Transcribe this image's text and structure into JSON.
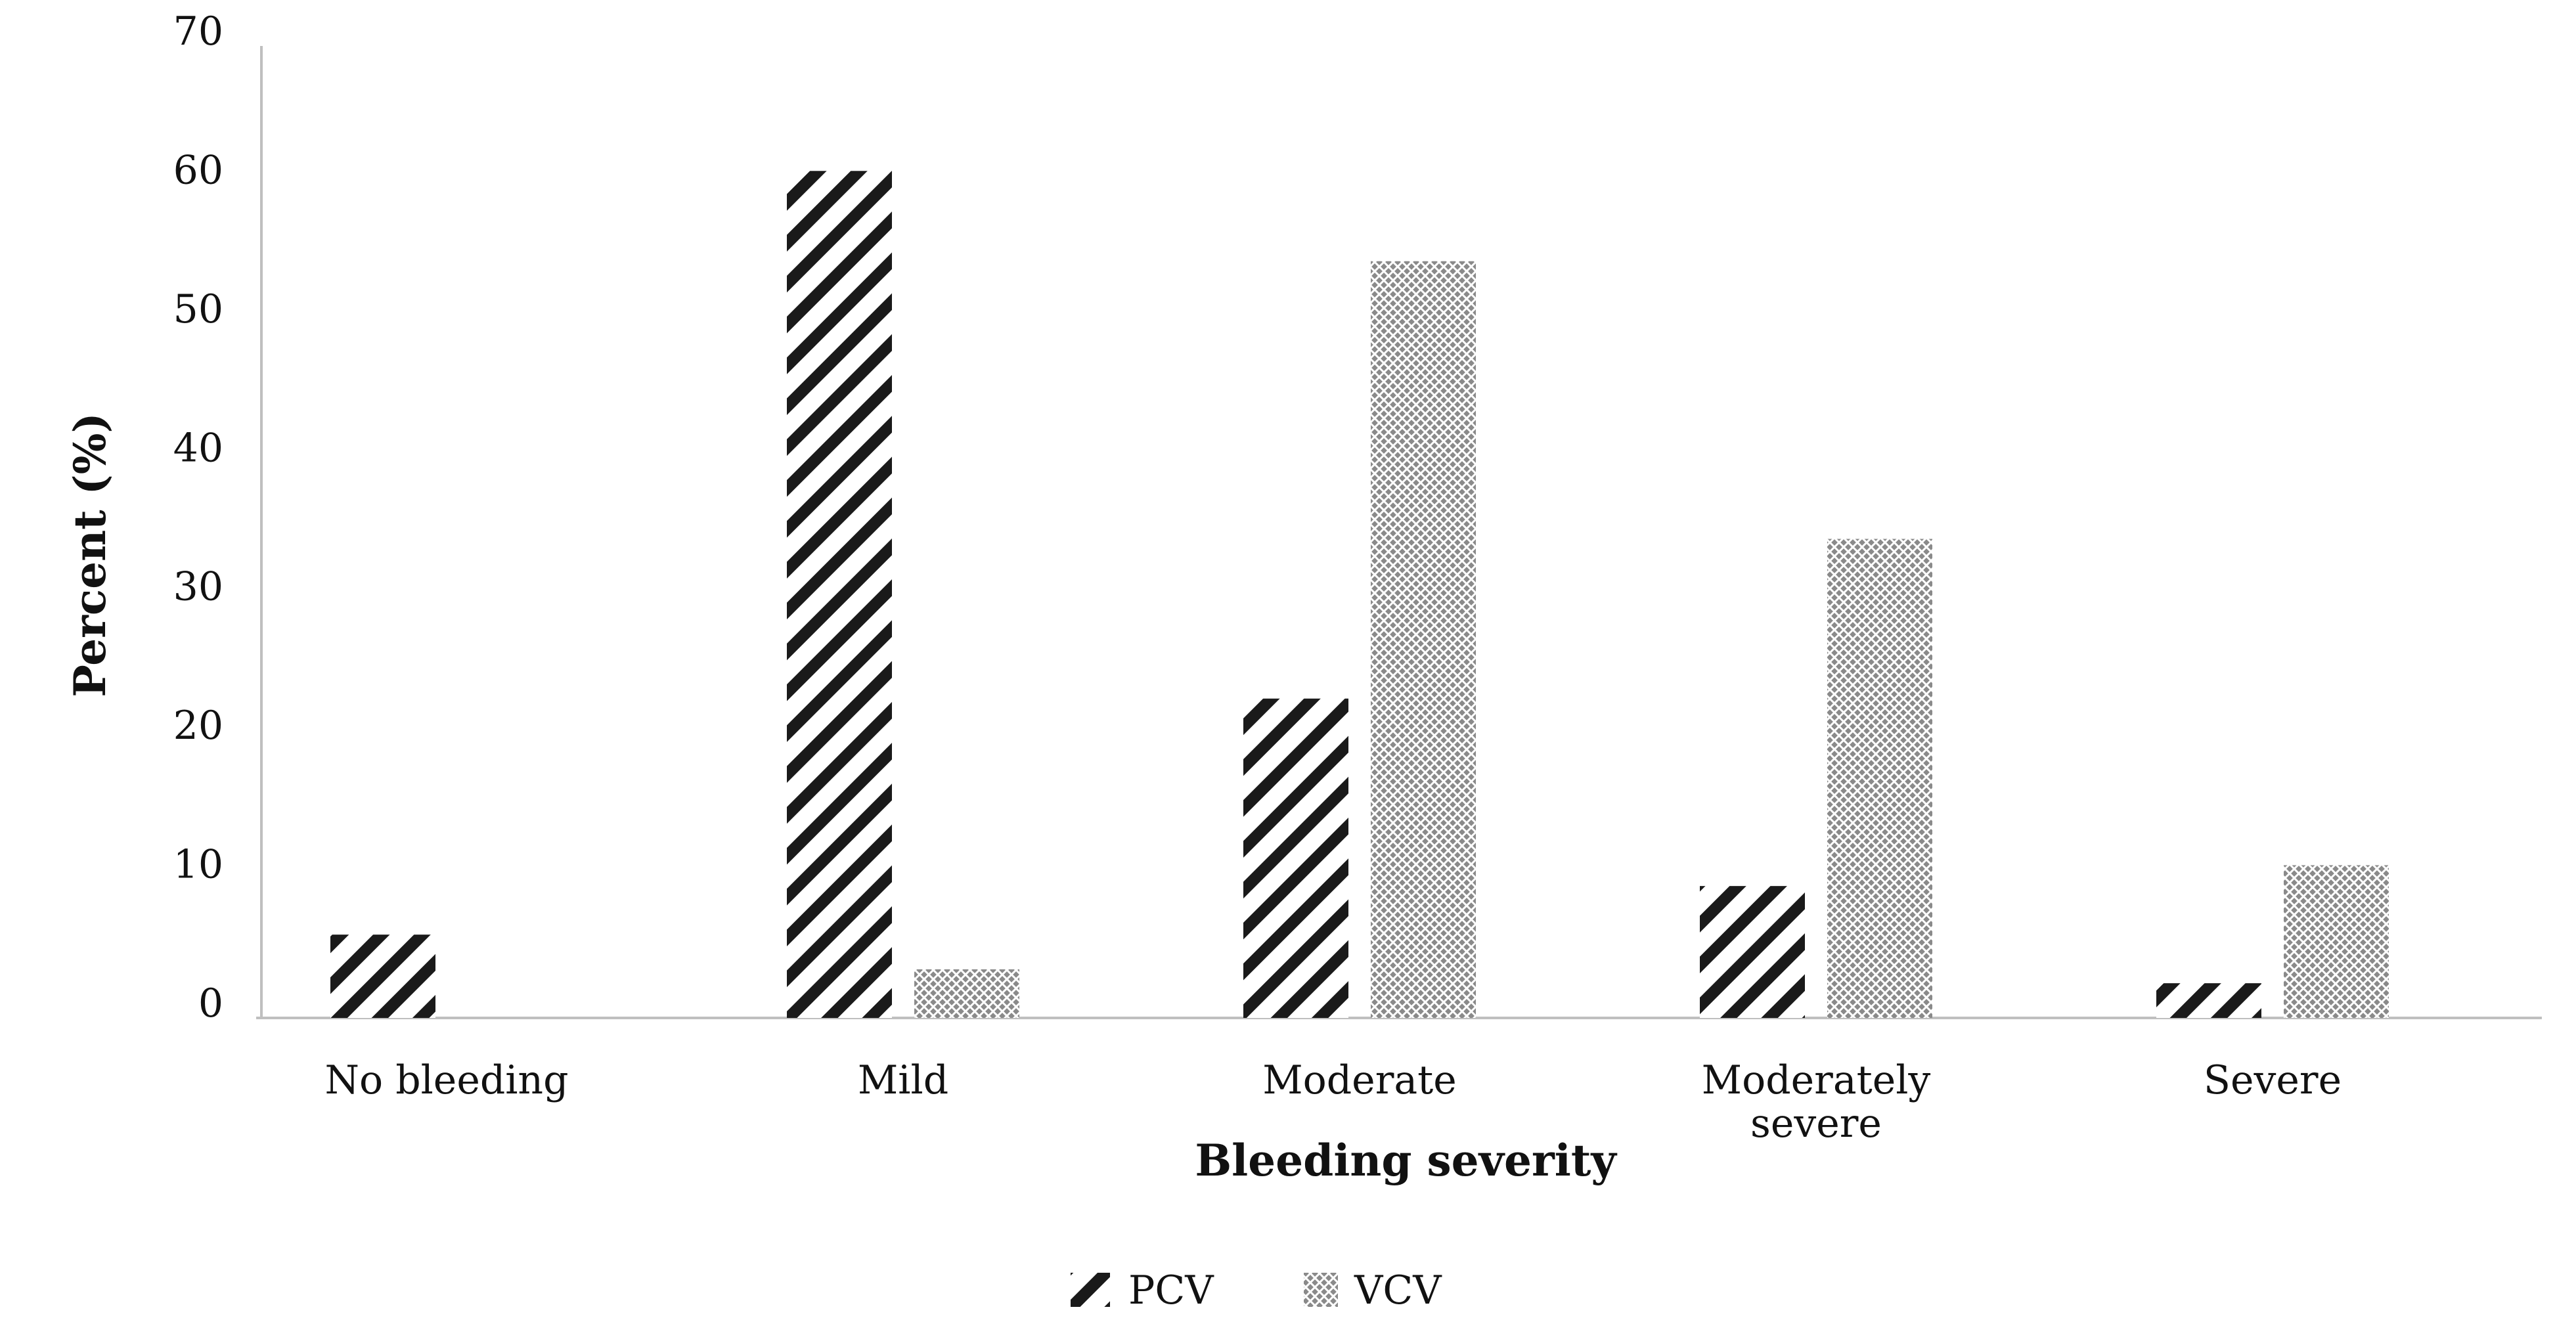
{
  "chart_data": {
    "type": "bar",
    "categories": [
      "No bleeding",
      "Mild",
      "Moderate",
      "Moderately severe",
      "Severe"
    ],
    "category_label_lines": [
      [
        "No bleeding"
      ],
      [
        "Mild"
      ],
      [
        "Moderate"
      ],
      [
        "Moderately",
        "severe"
      ],
      [
        "Severe"
      ]
    ],
    "series": [
      {
        "name": "PCV",
        "values": [
          6,
          61,
          23,
          9.5,
          2.5
        ],
        "pattern": "diagonal-stripes",
        "color": "#1a1a1a"
      },
      {
        "name": "VCV",
        "values": [
          0,
          3.5,
          54.5,
          34.5,
          11
        ],
        "pattern": "cross-hatch",
        "color": "#666666"
      }
    ],
    "title": "",
    "xlabel": "Bleeding severity",
    "ylabel": "Percent (%)",
    "ylim": [
      0,
      70
    ],
    "yticks": [
      0,
      10,
      20,
      30,
      40,
      50,
      60,
      70
    ],
    "grid": false,
    "legend_position": "bottom-center"
  }
}
